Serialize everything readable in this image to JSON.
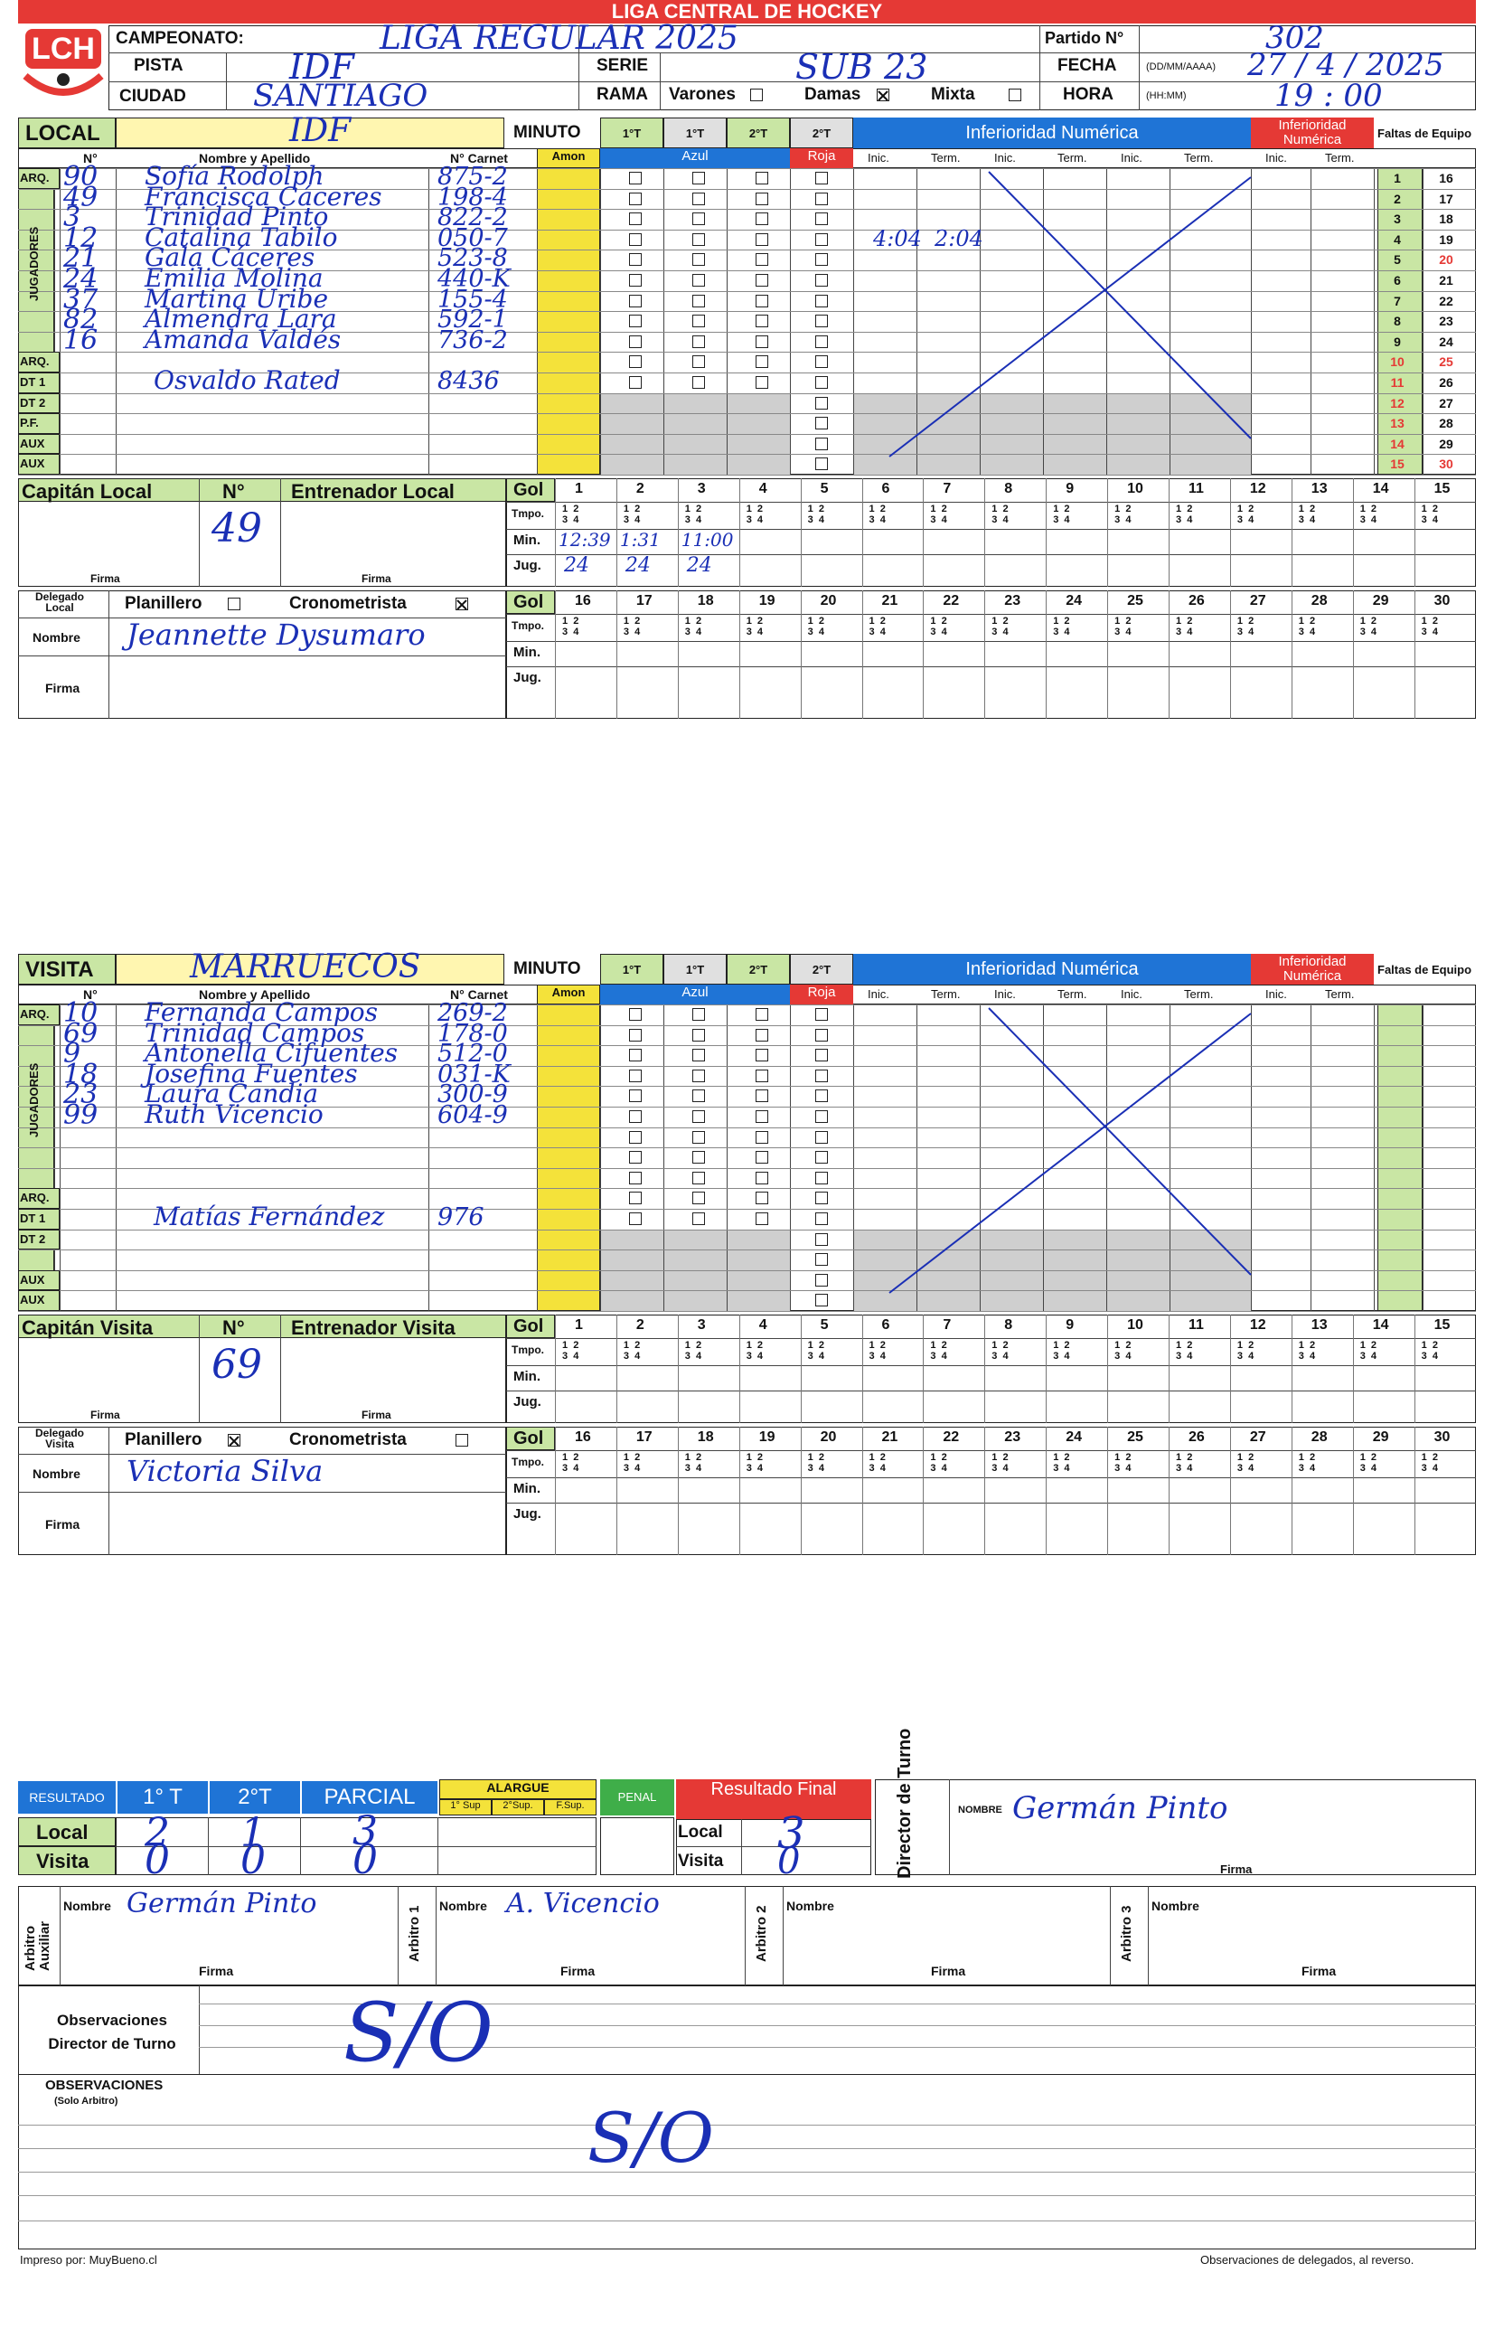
{
  "header": {
    "title": "LIGA CENTRAL DE HOCKEY",
    "logo": "LCH"
  },
  "meta": {
    "campeonato_label": "CAMPEONATO:",
    "campeonato": "LIGA REGULAR 2025",
    "pista_label": "PISTA",
    "pista": "IDF",
    "ciudad_label": "CIUDAD",
    "ciudad": "SANTIAGO",
    "serie_label": "SERIE",
    "serie": "SUB 23",
    "rama_label": "RAMA",
    "varones": "Varones",
    "damas": "Damas",
    "mixta": "Mixta",
    "partido_label": "Partido N°",
    "partido": "302",
    "fecha_label": "FECHA",
    "fecha_fmt": "(DD/MM/AAAA)",
    "fecha": "27 / 4 / 2025",
    "hora_label": "HORA",
    "hora_fmt": "(HH:MM)",
    "hora": "19 : 00"
  },
  "local": {
    "label": "LOCAL",
    "team": "IDF",
    "minuto": "MINUTO",
    "t1": "1°T",
    "t2": "2°T",
    "col_n": "N°",
    "col_name": "Nombre y Apellido",
    "col_carnet": "N° Carnet",
    "amon": "Amon",
    "azul": "Azul",
    "roja": "Roja",
    "inferioridad": "Inferioridad Numérica",
    "inferioridad2": "Inferioridad Numérica",
    "faltas": "Faltas de Equipo",
    "inic": "Inic.",
    "term": "Term.",
    "row_labels": [
      "ARQ.",
      "",
      "",
      "",
      "",
      "",
      "",
      "",
      "",
      "ARQ.",
      "DT 1",
      "DT 2",
      "P.F.",
      "AUX",
      "AUX"
    ],
    "jugadores": "JUGADORES",
    "players": [
      {
        "n": "90",
        "name": "Sofía Rodolph",
        "carnet": "875-2"
      },
      {
        "n": "49",
        "name": "Francisca Cáceres",
        "carnet": "198-4"
      },
      {
        "n": "3",
        "name": "Trinidad Pinto",
        "carnet": "822-2"
      },
      {
        "n": "12",
        "name": "Catalina Tabilo",
        "carnet": "050-7"
      },
      {
        "n": "21",
        "name": "Gala Cáceres",
        "carnet": "523-8"
      },
      {
        "n": "24",
        "name": "Emilia Molina",
        "carnet": "440-K"
      },
      {
        "n": "37",
        "name": "Martina Uribe",
        "carnet": "155-4"
      },
      {
        "n": "82",
        "name": "Almendra Lara",
        "carnet": "592-1"
      },
      {
        "n": "16",
        "name": "Amanda Valdés",
        "carnet": "736-2"
      },
      {
        "n": "",
        "name": "",
        "carnet": ""
      },
      {
        "n": "",
        "name": "Osvaldo Rated",
        "carnet": "8436"
      },
      {
        "n": "",
        "name": "",
        "carnet": ""
      },
      {
        "n": "",
        "name": "",
        "carnet": ""
      },
      {
        "n": "",
        "name": "",
        "carnet": ""
      },
      {
        "n": "",
        "name": "",
        "carnet": ""
      }
    ],
    "inferioridad_times": [
      "4:04",
      "2:04"
    ],
    "faltas_left": [
      "1",
      "2",
      "3",
      "4",
      "5",
      "6",
      "7",
      "8",
      "9",
      "10",
      "11",
      "12",
      "13",
      "14",
      "15"
    ],
    "faltas_right": [
      "16",
      "17",
      "18",
      "19",
      "20",
      "21",
      "22",
      "23",
      "24",
      "25",
      "26",
      "27",
      "28",
      "29",
      "30"
    ],
    "capitan": "Capitán Local",
    "n_label": "N°",
    "entrenador": "Entrenador Local",
    "capitan_n": "49",
    "firma": "Firma",
    "delegado": "Delegado Local",
    "nombre": "Nombre",
    "planillero": "Planillero",
    "cronometrista": "Cronometrista",
    "delegado_nombre": "Jeannette Dysumaro",
    "gol": "Gol",
    "tmpo": "Tmpo.",
    "min": "Min.",
    "jug": "Jug.",
    "goals_min": [
      "12:39",
      "1:31",
      "11:00"
    ],
    "goals_jug": [
      "24",
      "24",
      "24"
    ]
  },
  "visita": {
    "label": "VISITA",
    "team": "MARRUECOS",
    "minuto": "MINUTO",
    "t1": "1°T",
    "t2": "2°T",
    "col_n": "N°",
    "col_name": "Nombre y Apellido",
    "col_carnet": "N° Carnet",
    "amon": "Amon",
    "azul": "Azul",
    "roja": "Roja",
    "inferioridad": "Inferioridad Numérica",
    "inferioridad2": "Inferioridad Numérica",
    "faltas": "Faltas de Equipo",
    "inic": "Inic.",
    "term": "Term.",
    "row_labels": [
      "ARQ.",
      "",
      "",
      "",
      "",
      "",
      "",
      "",
      "",
      "ARQ.",
      "DT 1",
      "DT 2",
      "",
      "AUX",
      "AUX"
    ],
    "jugadores": "JUGADORES",
    "players": [
      {
        "n": "10",
        "name": "Fernanda Campos",
        "carnet": "269-2"
      },
      {
        "n": "69",
        "name": "Trinidad Campos",
        "carnet": "178-0"
      },
      {
        "n": "9",
        "name": "Antonella Cifuentes",
        "carnet": "512-0"
      },
      {
        "n": "18",
        "name": "Josefina Fuentes",
        "carnet": "031-K"
      },
      {
        "n": "23",
        "name": "Laura Candia",
        "carnet": "300-9"
      },
      {
        "n": "99",
        "name": "Ruth Vicencio",
        "carnet": "604-9"
      },
      {
        "n": "",
        "name": "",
        "carnet": ""
      },
      {
        "n": "",
        "name": "",
        "carnet": ""
      },
      {
        "n": "",
        "name": "",
        "carnet": ""
      },
      {
        "n": "",
        "name": "",
        "carnet": ""
      },
      {
        "n": "",
        "name": "Matías Fernández",
        "carnet": "976"
      },
      {
        "n": "",
        "name": "",
        "carnet": ""
      },
      {
        "n": "",
        "name": "",
        "carnet": ""
      },
      {
        "n": "",
        "name": "",
        "carnet": ""
      },
      {
        "n": "",
        "name": "",
        "carnet": ""
      }
    ],
    "capitan": "Capitán Visita",
    "n_label": "N°",
    "entrenador": "Entrenador Visita",
    "capitan_n": "69",
    "firma": "Firma",
    "delegado": "Delegado Visita",
    "nombre": "Nombre",
    "planillero": "Planillero",
    "cronometrista": "Cronometrista",
    "delegado_nombre": "Victoria Silva",
    "gol": "Gol",
    "tmpo": "Tmpo.",
    "min": "Min.",
    "jug": "Jug."
  },
  "goal_numbers_1": [
    "1",
    "2",
    "3",
    "4",
    "5",
    "6",
    "7",
    "8",
    "9",
    "10",
    "11",
    "12",
    "13",
    "14",
    "15"
  ],
  "goal_numbers_2": [
    "16",
    "17",
    "18",
    "19",
    "20",
    "21",
    "22",
    "23",
    "24",
    "25",
    "26",
    "27",
    "28",
    "29",
    "30"
  ],
  "resultado": {
    "label": "RESULTADO",
    "t1": "1° T",
    "t2": "2°T",
    "parcial": "PARCIAL",
    "alargue": "ALARGUE",
    "sup1": "1° Sup",
    "sup2": "2°Sup.",
    "fsup": "F.Sup.",
    "penal": "PENAL",
    "final": "Resultado Final",
    "local": "Local",
    "visita": "Visita",
    "local_t1": "2",
    "local_t2": "1",
    "local_parcial": "3",
    "visita_t1": "0",
    "visita_t2": "0",
    "visita_parcial": "0",
    "final_local": "3",
    "final_visita": "0",
    "director": "Director de Turno",
    "director_nombre_label": "NOMBRE",
    "director_nombre": "Germán Pinto",
    "firma": "Firma"
  },
  "arbitros": {
    "auxiliar": "Arbitro Auxiliar",
    "a1": "Arbitro 1",
    "a2": "Arbitro 2",
    "a3": "Arbitro 3",
    "nombre": "Nombre",
    "firma": "Firma",
    "aux_nombre": "Germán Pinto",
    "a1_nombre": "A. Vicencio"
  },
  "observaciones": {
    "director": "Observaciones Director de Turno",
    "director_text": "S/O",
    "arbitro": "OBSERVACIONES",
    "arbitro_sub": "(Solo Arbitro)",
    "arbitro_text": "S/O"
  },
  "footer": {
    "left": "Impreso por: MuyBueno.cl",
    "right": "Observaciones de delegados, al reverso."
  },
  "colors": {
    "red": "#e53935",
    "blue": "#1f74d6",
    "green": "#c9e6a4",
    "yellow": "#f4e23a",
    "ink": "#1a2fb5"
  }
}
